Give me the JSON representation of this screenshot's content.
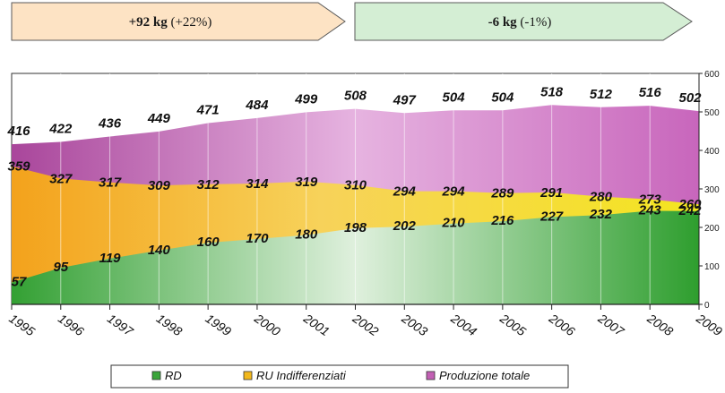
{
  "annotations": {
    "arrow1": "+92 kg",
    "arrow1_pct": "(+22%)",
    "arrow2": "-6 kg",
    "arrow2_pct": "(-1%)"
  },
  "chart_data": {
    "type": "area",
    "categories": [
      "1995",
      "1996",
      "1997",
      "1998",
      "1999",
      "2000",
      "2001",
      "2002",
      "2003",
      "2004",
      "2005",
      "2006",
      "2007",
      "2008",
      "2009"
    ],
    "series": [
      {
        "name": "RD",
        "values": [
          57,
          95,
          119,
          140,
          160,
          170,
          180,
          198,
          202,
          210,
          216,
          227,
          232,
          243,
          242
        ],
        "color": "#3aa53a"
      },
      {
        "name": "RU Indifferenziati",
        "values": [
          359,
          327,
          317,
          309,
          312,
          314,
          319,
          310,
          294,
          294,
          289,
          291,
          280,
          273,
          260
        ],
        "color": "#f2b81c"
      },
      {
        "name": "Produzione totale",
        "values": [
          416,
          422,
          436,
          449,
          471,
          484,
          499,
          508,
          497,
          504,
          504,
          518,
          512,
          516,
          502
        ],
        "color": "#c260b4"
      }
    ],
    "y_ticks": [
      "0",
      "100",
      "200",
      "300",
      "400",
      "500",
      "600"
    ],
    "ylim": [
      0,
      600
    ],
    "y_axis_side": "right",
    "legend_position": "bottom",
    "grid": "vertical lines at categories"
  }
}
